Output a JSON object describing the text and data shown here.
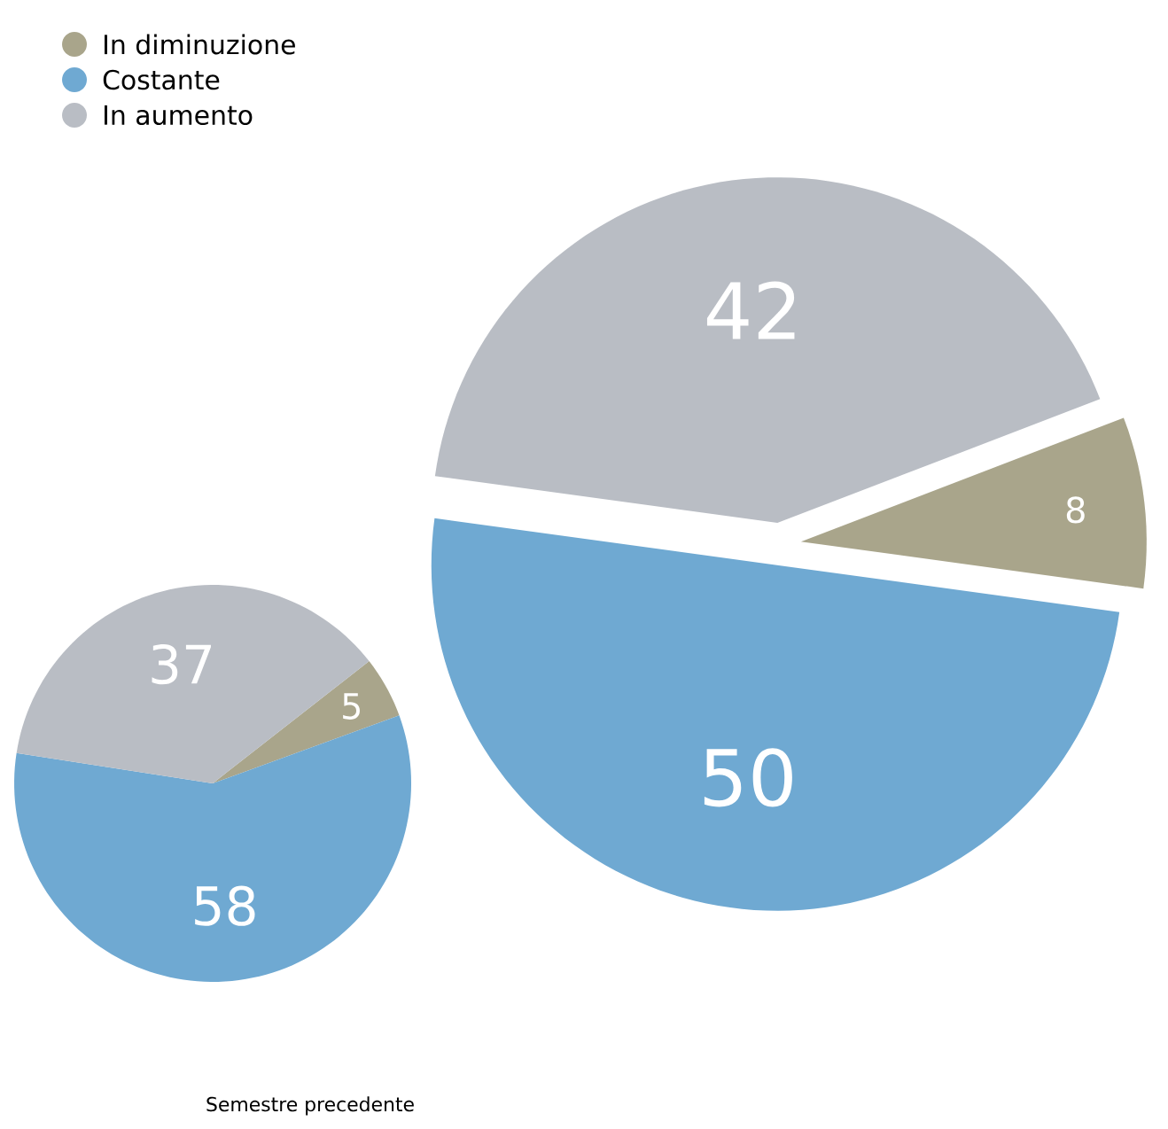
{
  "chart_data": [
    {
      "type": "pie",
      "categories": [
        "In diminuzione",
        "Costante",
        "In aumento"
      ],
      "values": [
        8,
        50,
        42
      ],
      "colors": [
        "#a9a58b",
        "#6fa9d2",
        "#b9bdc4"
      ],
      "data_labels": true,
      "legend": "top left"
    },
    {
      "type": "pie",
      "title": "Semestre precedente",
      "categories": [
        null,
        null,
        null
      ],
      "values": [
        5,
        58,
        37
      ],
      "colors": [
        "#a9a58b",
        "#6fa9d2",
        "#b9bdc4"
      ],
      "data_labels": true
    }
  ]
}
